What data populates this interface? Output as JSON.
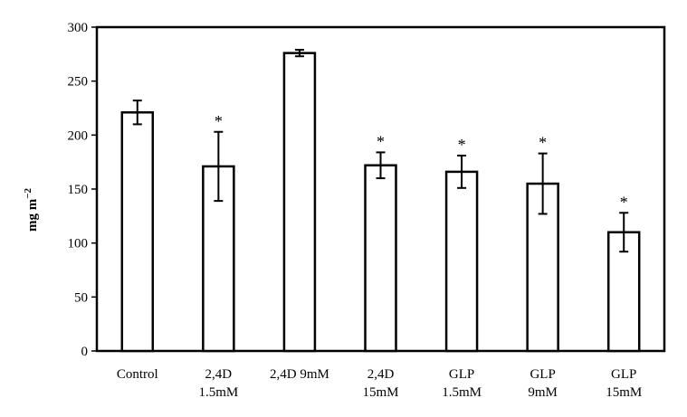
{
  "chart_data": {
    "type": "bar",
    "title": "",
    "xlabel": "",
    "ylabel": "mg m",
    "ylabel_superscript": "−2",
    "ylim": [
      0,
      300
    ],
    "yticks": [
      0,
      50,
      100,
      150,
      200,
      250,
      300
    ],
    "grid": false,
    "categories": [
      [
        "Control"
      ],
      [
        "2,4D",
        "1.5mM"
      ],
      [
        "2,4D 9mM"
      ],
      [
        "2,4D",
        "15mM"
      ],
      [
        "GLP",
        "1.5mM"
      ],
      [
        "GLP",
        "9mM"
      ],
      [
        "GLP",
        "15mM"
      ]
    ],
    "values": [
      221,
      171,
      276,
      172,
      166,
      155,
      110
    ],
    "errors": [
      11,
      32,
      3,
      12,
      15,
      28,
      18
    ],
    "significance": [
      "",
      "*",
      "",
      "*",
      "*",
      "*",
      "*"
    ]
  },
  "colors": {
    "bar_fill": "#ffffff",
    "stroke": "#000000",
    "background": "#ffffff"
  }
}
